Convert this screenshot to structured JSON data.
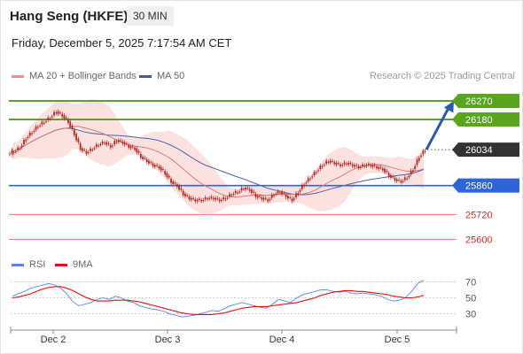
{
  "header": {
    "instrument": "Hang Seng (HKFE)",
    "timeframe": "30 MIN",
    "datetime": "Friday, December 5, 2025 7:17:54 AM CET"
  },
  "legend": {
    "ma20_label": "MA 20 + Bollinger Bands",
    "ma50_label": "MA 50",
    "credit": "Research © 2025 Trading Central"
  },
  "colors": {
    "resistance": "#5aa51e",
    "support": "#2f64d8",
    "lower": "#e07a7a",
    "last": "#333333",
    "candle": "#b22a1f",
    "ma20": "#e07a7a",
    "ma50": "#4a63a6",
    "band": "#fbdcdc",
    "rsi": "#6a8fdf",
    "rsi_ma": "#e01010",
    "arrow": "#2a5aa8"
  },
  "chart_data": [
    {
      "type": "candlestick",
      "title": "",
      "ylim": [
        25550,
        26330
      ],
      "x_labels": [
        "Dec 2",
        "Dec 3",
        "Dec 4",
        "Dec 5"
      ],
      "levels": [
        {
          "label": "26270",
          "value": 26270,
          "kind": "resistance"
        },
        {
          "label": "26180",
          "value": 26180,
          "kind": "resistance"
        },
        {
          "label": "26034",
          "value": 26034,
          "kind": "last"
        },
        {
          "label": "25860",
          "value": 25860,
          "kind": "support"
        },
        {
          "label": "25720",
          "value": 25720,
          "kind": "lower"
        },
        {
          "label": "25600",
          "value": 25600,
          "kind": "lower"
        }
      ],
      "close_path": [
        26025,
        26045,
        26090,
        26120,
        26150,
        26170,
        26190,
        26220,
        26200,
        26170,
        26110,
        26040,
        26020,
        26040,
        26060,
        26070,
        26050,
        26080,
        26070,
        26050,
        26040,
        26000,
        25980,
        25960,
        25950,
        25920,
        25880,
        25860,
        25820,
        25800,
        25790,
        25790,
        25800,
        25800,
        25790,
        25800,
        25820,
        25830,
        25850,
        25840,
        25810,
        25800,
        25790,
        25820,
        25830,
        25810,
        25790,
        25830,
        25870,
        25900,
        25930,
        25960,
        25980,
        25970,
        25960,
        25970,
        25960,
        25950,
        25960,
        25960,
        25950,
        25940,
        25910,
        25890,
        25880,
        25900,
        25940,
        26000,
        26034
      ],
      "forecast_arrow": {
        "from": 26034,
        "to": 26270
      }
    },
    {
      "type": "line",
      "title": "",
      "ylim": [
        15,
        85
      ],
      "ticks": [
        "70",
        "50",
        "30"
      ],
      "tick_values": [
        70,
        50,
        30
      ],
      "series": [
        {
          "name": "RSI",
          "values": [
            52,
            55,
            58,
            62,
            64,
            66,
            68,
            66,
            62,
            55,
            45,
            40,
            42,
            44,
            48,
            50,
            48,
            52,
            50,
            46,
            44,
            40,
            38,
            36,
            35,
            33,
            30,
            28,
            26,
            27,
            28,
            30,
            32,
            34,
            33,
            36,
            40,
            42,
            44,
            42,
            40,
            38,
            37,
            42,
            48,
            46,
            44,
            50,
            54,
            56,
            58,
            60,
            60,
            58,
            57,
            58,
            56,
            55,
            56,
            55,
            54,
            52,
            48,
            46,
            47,
            50,
            58,
            68,
            72
          ]
        },
        {
          "name": "9MA",
          "values": [
            50,
            51,
            53,
            55,
            58,
            61,
            63,
            64,
            64,
            62,
            59,
            55,
            51,
            48,
            46,
            46,
            46,
            47,
            47,
            47,
            46,
            45,
            43,
            41,
            39,
            37,
            35,
            33,
            31,
            30,
            29,
            29,
            29,
            29,
            30,
            31,
            33,
            35,
            37,
            38,
            39,
            39,
            39,
            40,
            41,
            42,
            43,
            44,
            46,
            48,
            50,
            53,
            55,
            57,
            58,
            59,
            59,
            58,
            58,
            57,
            56,
            55,
            54,
            52,
            51,
            50,
            50,
            51,
            53
          ]
        }
      ]
    }
  ]
}
